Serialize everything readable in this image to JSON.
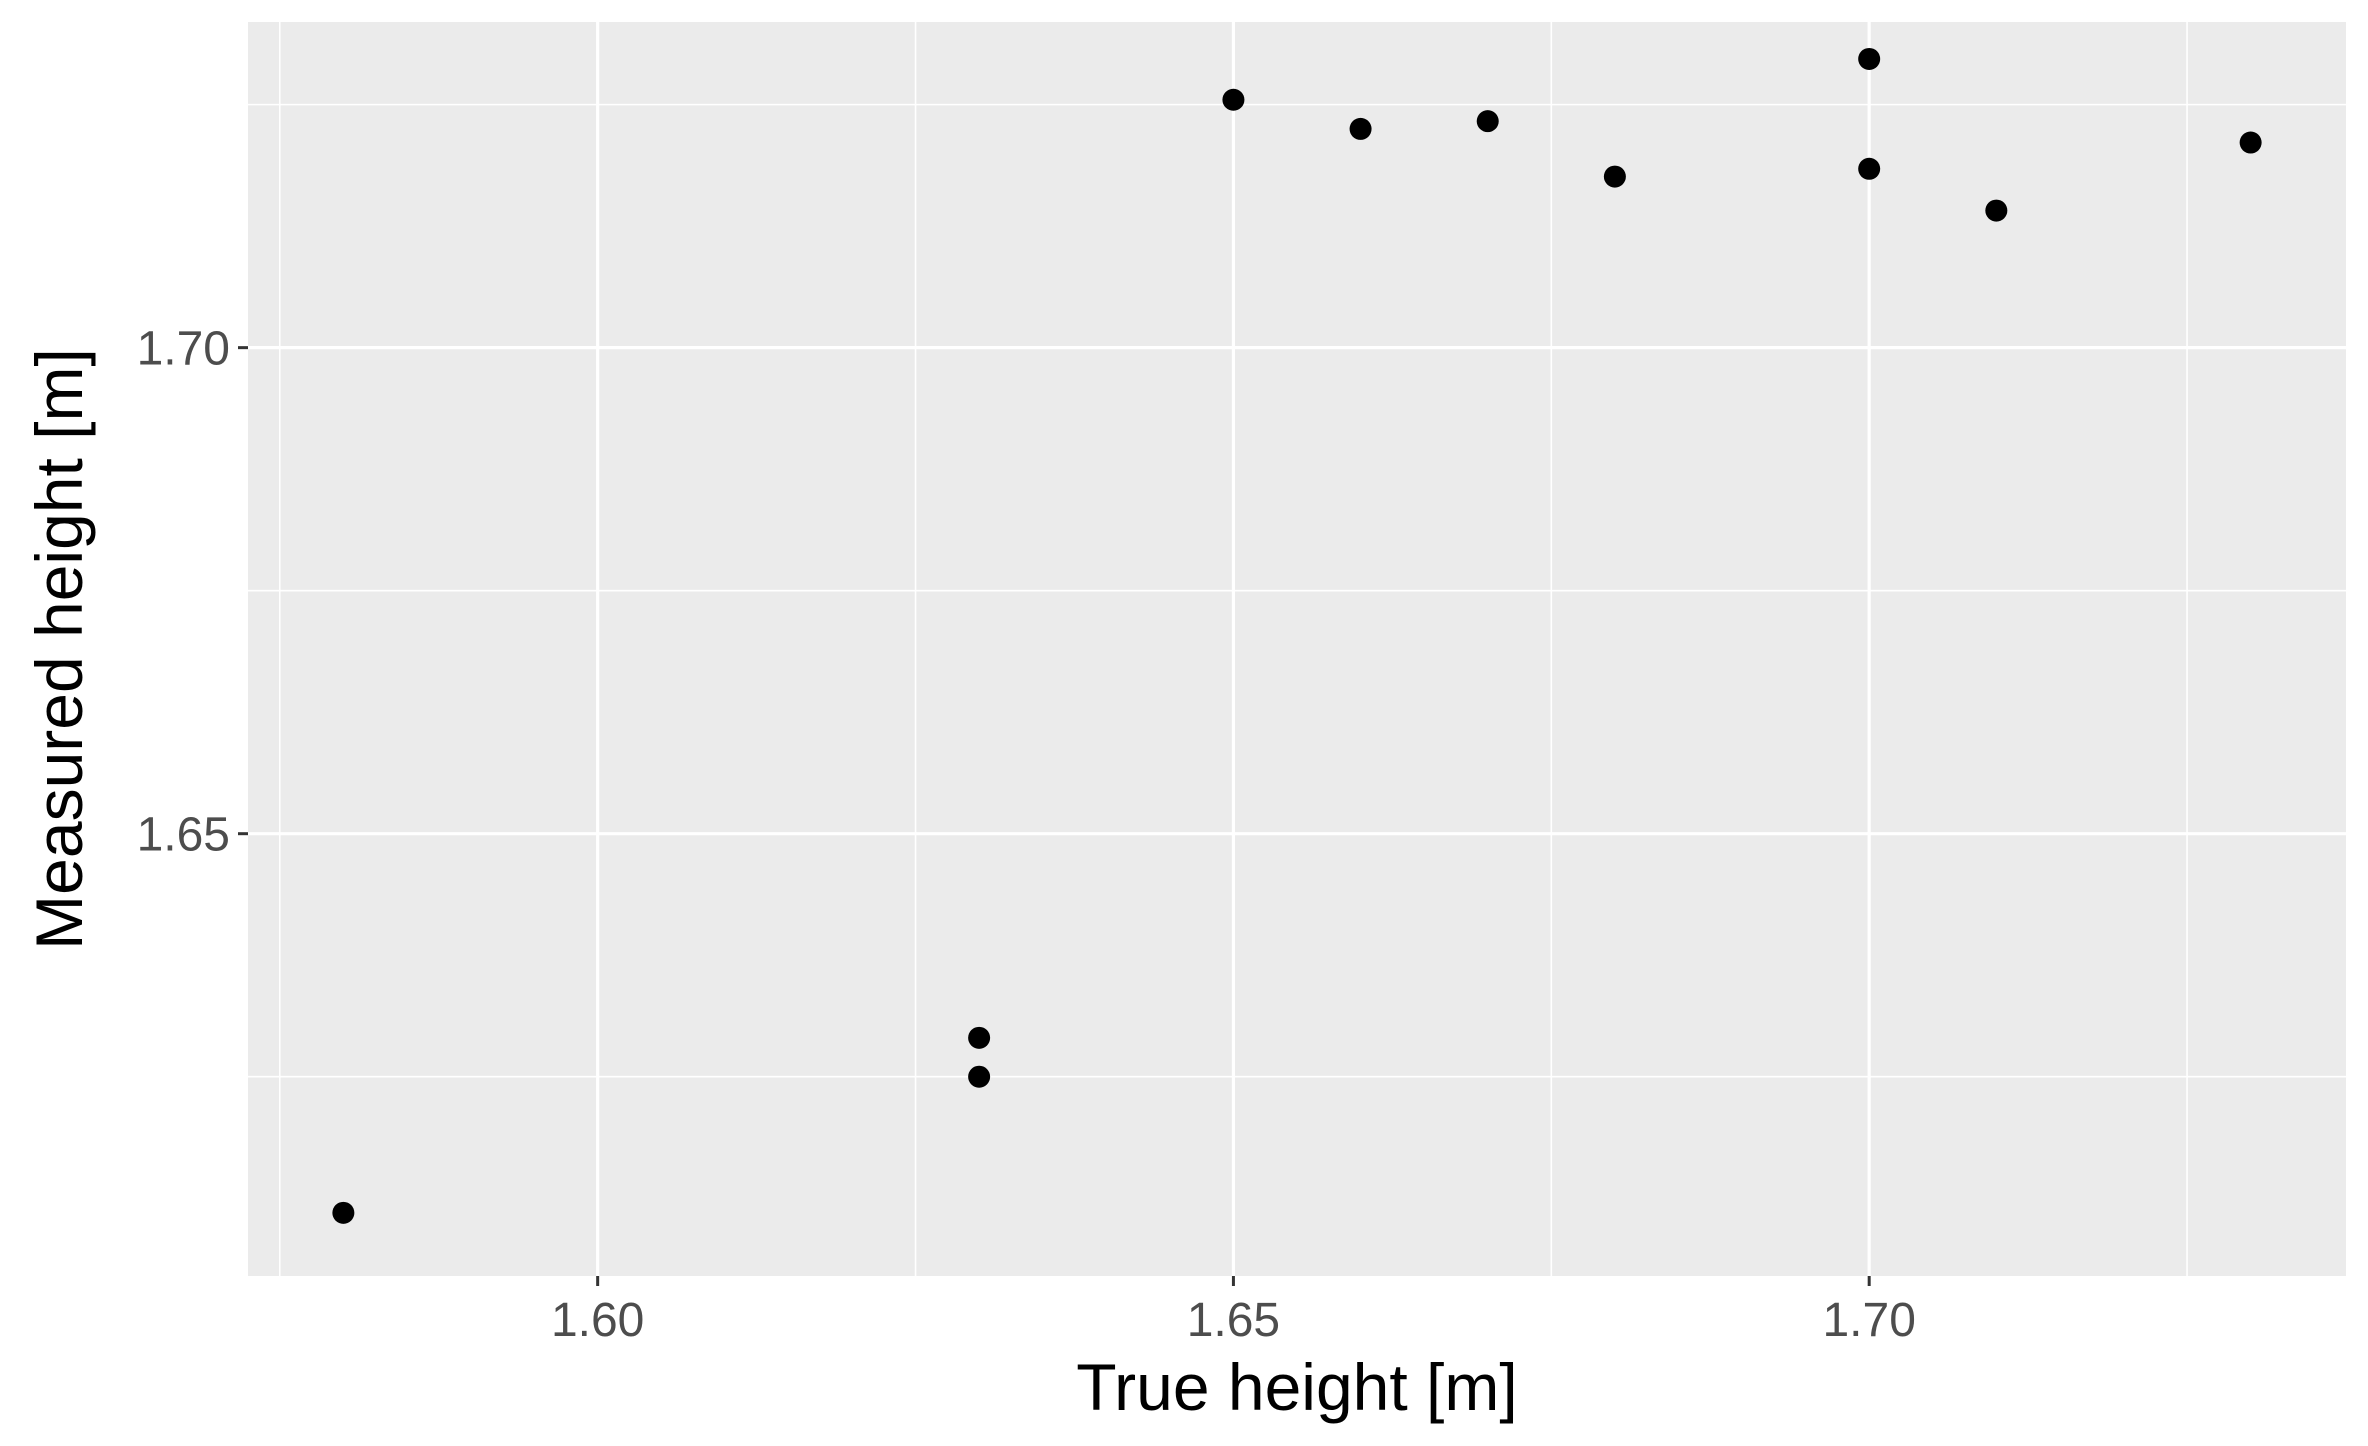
{
  "chart_data": {
    "type": "scatter",
    "title": "",
    "xlabel": "True height [m]",
    "ylabel": "Measured height [m]",
    "xlim": [
      1.5725,
      1.7375
    ],
    "ylim": [
      1.6045,
      1.7335
    ],
    "x_ticks": [
      1.6,
      1.65,
      1.7
    ],
    "x_tick_labels": [
      "1.60",
      "1.65",
      "1.70"
    ],
    "x_minor_breaks": [
      1.575,
      1.625,
      1.675,
      1.725
    ],
    "y_ticks": [
      1.65,
      1.7
    ],
    "y_tick_labels": [
      "1.65",
      "1.70"
    ],
    "y_minor_breaks": [
      1.625,
      1.675,
      1.725
    ],
    "grid": true,
    "legend": "none",
    "point_color": "#000000",
    "panel_background": "#ebebeb",
    "grid_color": "#ffffff",
    "series": [
      {
        "points": [
          {
            "x": 1.58,
            "y": 1.611
          },
          {
            "x": 1.63,
            "y": 1.625
          },
          {
            "x": 1.63,
            "y": 1.629
          },
          {
            "x": 1.65,
            "y": 1.7255
          },
          {
            "x": 1.66,
            "y": 1.7225
          },
          {
            "x": 1.67,
            "y": 1.7233
          },
          {
            "x": 1.68,
            "y": 1.7176
          },
          {
            "x": 1.7,
            "y": 1.7297
          },
          {
            "x": 1.7,
            "y": 1.7184
          },
          {
            "x": 1.71,
            "y": 1.7141
          },
          {
            "x": 1.73,
            "y": 1.7211
          }
        ]
      }
    ]
  }
}
